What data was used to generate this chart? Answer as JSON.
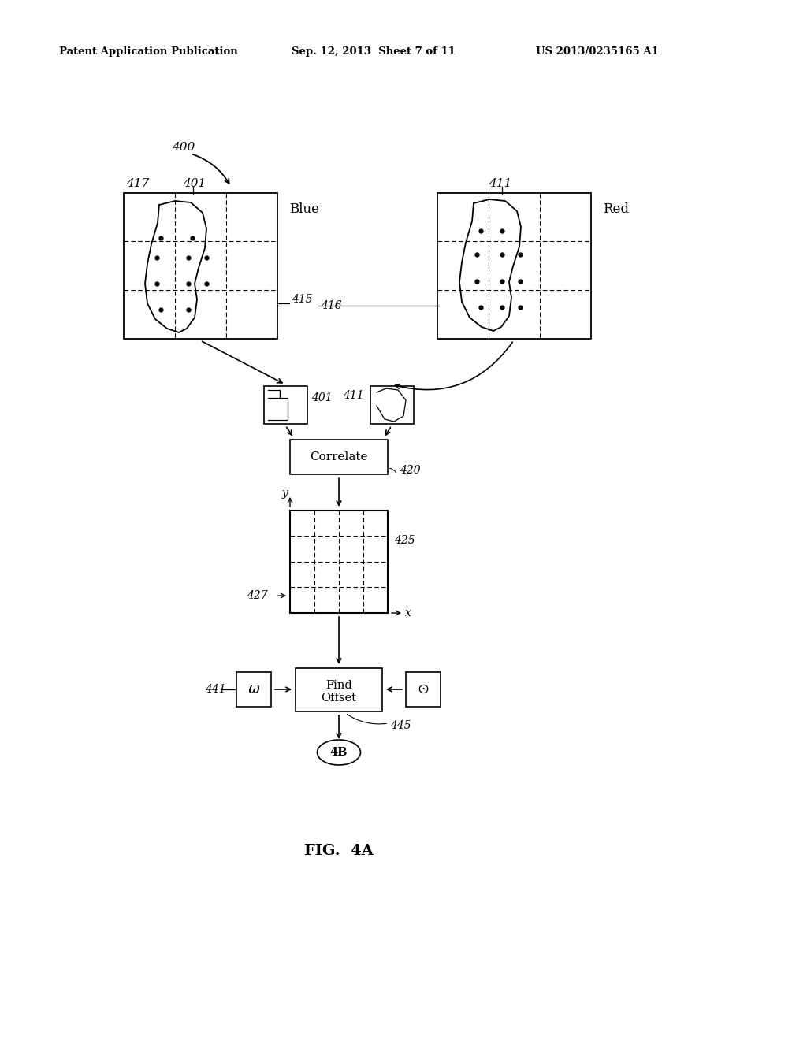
{
  "bg_color": "#ffffff",
  "header_left": "Patent Application Publication",
  "header_mid": "Sep. 12, 2013  Sheet 7 of 11",
  "header_right": "US 2013/0235165 A1",
  "fig_label": "FIG.  4A",
  "label_400": "400",
  "label_401_top": "401",
  "label_411_top": "411",
  "label_417": "417",
  "label_blue": "Blue",
  "label_red": "Red",
  "label_415": "415",
  "label_416": "416",
  "label_401_mid": "401",
  "label_411_mid": "411",
  "label_correlate": "Correlate",
  "label_420": "420",
  "label_y": "y",
  "label_x": "x",
  "label_425": "425",
  "label_427": "427",
  "label_441": "441",
  "label_find_offset_1": "Find",
  "label_find_offset_2": "Offset",
  "label_445": "445",
  "label_4B": "4B"
}
